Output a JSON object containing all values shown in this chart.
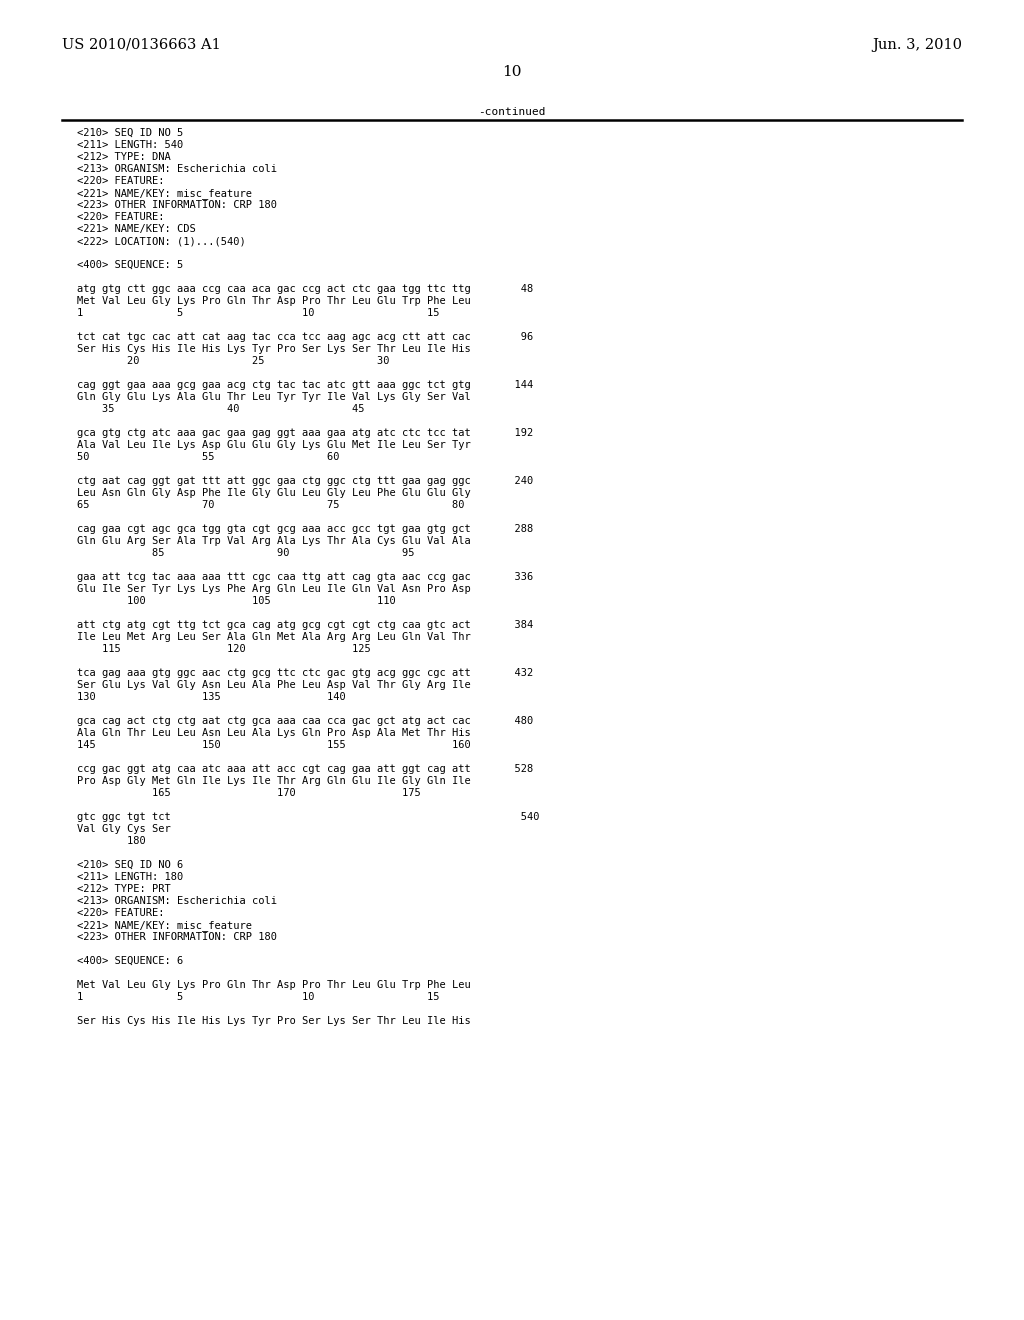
{
  "header_left": "US 2010/0136663 A1",
  "header_right": "Jun. 3, 2010",
  "page_number": "10",
  "continued_text": "-continued",
  "background_color": "#ffffff",
  "text_color": "#000000",
  "font_size_header": 10.5,
  "font_size_page_num": 11,
  "font_size_mono": 7.5,
  "content": [
    "<210> SEQ ID NO 5",
    "<211> LENGTH: 540",
    "<212> TYPE: DNA",
    "<213> ORGANISM: Escherichia coli",
    "<220> FEATURE:",
    "<221> NAME/KEY: misc_feature",
    "<223> OTHER INFORMATION: CRP 180",
    "<220> FEATURE:",
    "<221> NAME/KEY: CDS",
    "<222> LOCATION: (1)...(540)",
    "",
    "<400> SEQUENCE: 5",
    "",
    "atg gtg ctt ggc aaa ccg caa aca gac ccg act ctc gaa tgg ttc ttg        48",
    "Met Val Leu Gly Lys Pro Gln Thr Asp Pro Thr Leu Glu Trp Phe Leu",
    "1               5                   10                  15",
    "",
    "tct cat tgc cac att cat aag tac cca tcc aag agc acg ctt att cac        96",
    "Ser His Cys His Ile His Lys Tyr Pro Ser Lys Ser Thr Leu Ile His",
    "        20                  25                  30",
    "",
    "cag ggt gaa aaa gcg gaa acg ctg tac tac atc gtt aaa ggc tct gtg       144",
    "Gln Gly Glu Lys Ala Glu Thr Leu Tyr Tyr Ile Val Lys Gly Ser Val",
    "    35                  40                  45",
    "",
    "gca gtg ctg atc aaa gac gaa gag ggt aaa gaa atg atc ctc tcc tat       192",
    "Ala Val Leu Ile Lys Asp Glu Glu Gly Lys Glu Met Ile Leu Ser Tyr",
    "50                  55                  60",
    "",
    "ctg aat cag ggt gat ttt att ggc gaa ctg ggc ctg ttt gaa gag ggc       240",
    "Leu Asn Gln Gly Asp Phe Ile Gly Glu Leu Gly Leu Phe Glu Glu Gly",
    "65                  70                  75                  80",
    "",
    "cag gaa cgt agc gca tgg gta cgt gcg aaa acc gcc tgt gaa gtg gct       288",
    "Gln Glu Arg Ser Ala Trp Val Arg Ala Lys Thr Ala Cys Glu Val Ala",
    "            85                  90                  95",
    "",
    "gaa att tcg tac aaa aaa ttt cgc caa ttg att cag gta aac ccg gac       336",
    "Glu Ile Ser Tyr Lys Lys Phe Arg Gln Leu Ile Gln Val Asn Pro Asp",
    "        100                 105                 110",
    "",
    "att ctg atg cgt ttg tct gca cag atg gcg cgt cgt ctg caa gtc act       384",
    "Ile Leu Met Arg Leu Ser Ala Gln Met Ala Arg Arg Leu Gln Val Thr",
    "    115                 120                 125",
    "",
    "tca gag aaa gtg ggc aac ctg gcg ttc ctc gac gtg acg ggc cgc att       432",
    "Ser Glu Lys Val Gly Asn Leu Ala Phe Leu Asp Val Thr Gly Arg Ile",
    "130                 135                 140",
    "",
    "gca cag act ctg ctg aat ctg gca aaa caa cca gac gct atg act cac       480",
    "Ala Gln Thr Leu Leu Asn Leu Ala Lys Gln Pro Asp Ala Met Thr His",
    "145                 150                 155                 160",
    "",
    "ccg gac ggt atg caa atc aaa att acc cgt cag gaa att ggt cag att       528",
    "Pro Asp Gly Met Gln Ile Lys Ile Thr Arg Gln Glu Ile Gly Gln Ile",
    "            165                 170                 175",
    "",
    "gtc ggc tgt tct                                                        540",
    "Val Gly Cys Ser",
    "        180",
    "",
    "<210> SEQ ID NO 6",
    "<211> LENGTH: 180",
    "<212> TYPE: PRT",
    "<213> ORGANISM: Escherichia coli",
    "<220> FEATURE:",
    "<221> NAME/KEY: misc_feature",
    "<223> OTHER INFORMATION: CRP 180",
    "",
    "<400> SEQUENCE: 6",
    "",
    "Met Val Leu Gly Lys Pro Gln Thr Asp Pro Thr Leu Glu Trp Phe Leu",
    "1               5                   10                  15",
    "",
    "Ser His Cys His Ile His Lys Tyr Pro Ser Lys Ser Thr Leu Ile His"
  ]
}
